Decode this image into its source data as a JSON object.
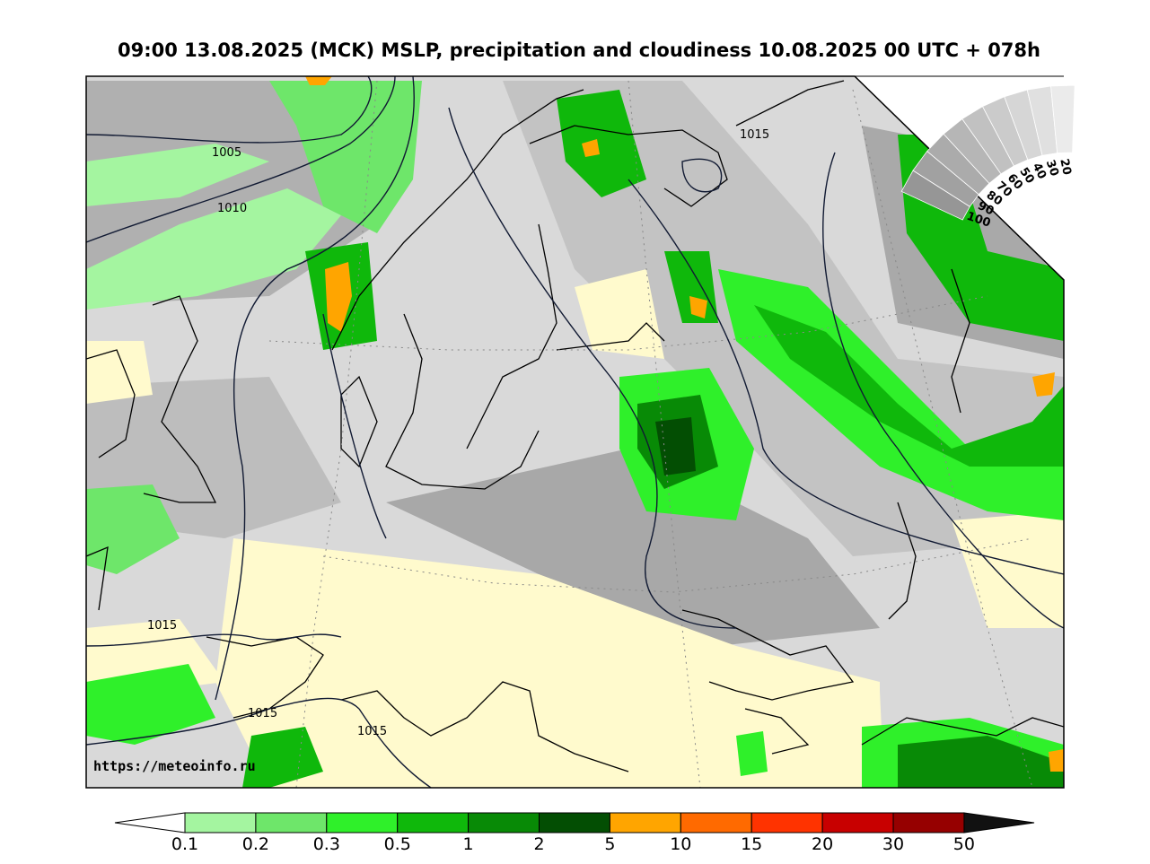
{
  "title": "09:00 13.08.2025 (MCK) MSLP, precipitation and cloudiness 10.08.2025 00 UTC + 078h",
  "url": "https://meteoinfo.ru",
  "isobar_labels": [
    "1005",
    "1010",
    "1015",
    "1015",
    "1015",
    "1015"
  ],
  "cloudiness_scale": {
    "labels": [
      "100",
      "90",
      "80",
      "70",
      "60",
      "50",
      "40",
      "30",
      "20"
    ]
  },
  "colorbar": {
    "labels": [
      "0.1",
      "0.2",
      "0.3",
      "0.5",
      "1",
      "2",
      "5",
      "10",
      "15",
      "20",
      "30",
      "50"
    ],
    "colors": [
      "#a4f5a0",
      "#6ee66a",
      "#2ff02a",
      "#0fb80b",
      "#088a06",
      "#034e03",
      "#ffa500",
      "#ff6a00",
      "#ff3300",
      "#c80000",
      "#960000"
    ]
  },
  "colors": {
    "sea_cloud_gray": "#b4b4b4",
    "dark_cloud": "#8c8c8c",
    "clear_yellow": "#fffacd",
    "coast": "#000000"
  }
}
